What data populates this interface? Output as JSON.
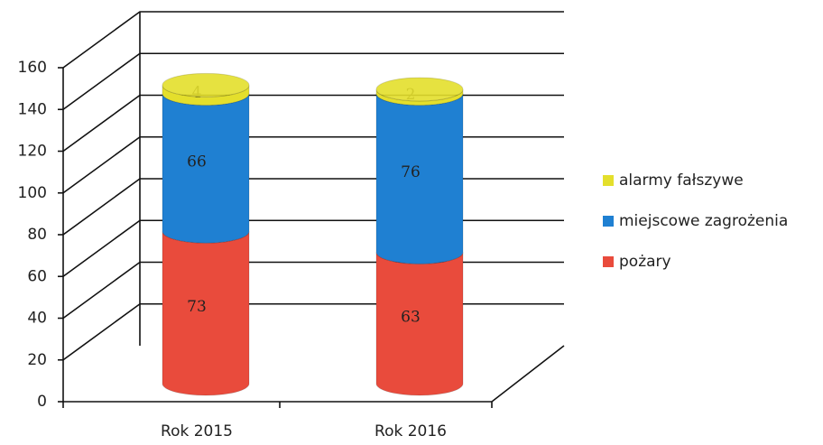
{
  "chart_data": {
    "type": "bar3d-cylinder-stacked",
    "categories": [
      "Rok 2015",
      "Rok 2016"
    ],
    "series": [
      {
        "name": "pożary",
        "color": "#e94b3c",
        "values": [
          73,
          63
        ]
      },
      {
        "name": "miejscowe zagrożenia",
        "color": "#1f80d2",
        "values": [
          66,
          76
        ]
      },
      {
        "name": "alarmy fałszywe",
        "color": "#e4df2c",
        "values": [
          4,
          2
        ]
      }
    ],
    "ylim": [
      0,
      160
    ],
    "yticks": [
      0,
      20,
      40,
      60,
      80,
      100,
      120,
      140,
      160
    ],
    "grid": true,
    "legend": "right"
  }
}
